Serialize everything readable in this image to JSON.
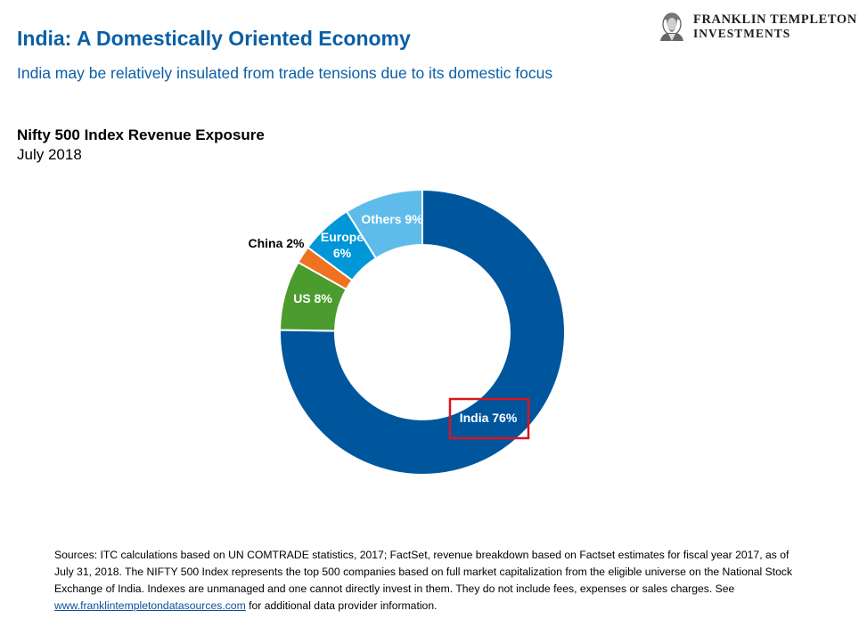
{
  "header": {
    "title": "India: A Domestically Oriented Economy",
    "subtitle": "India may be relatively insulated from trade tensions due to its domestic focus"
  },
  "logo": {
    "line1": "FRANKLIN TEMPLETON",
    "line2": "INVESTMENTS"
  },
  "chart_data": {
    "type": "pie",
    "title": "Nifty 500 Index Revenue Exposure",
    "subtitle": "July 2018",
    "donut": true,
    "slices": [
      {
        "name": "India",
        "value": 76,
        "label": "India 76%",
        "color": "#00569d",
        "highlighted": true
      },
      {
        "name": "US",
        "value": 8,
        "label": "US 8%",
        "color": "#4c9b2e"
      },
      {
        "name": "China",
        "value": 2,
        "label": "China 2%",
        "color": "#ee7220"
      },
      {
        "name": "Europe",
        "value": 6,
        "label_lines": [
          "Europe",
          "6%"
        ],
        "color": "#0097d9"
      },
      {
        "name": "Others",
        "value": 9,
        "label": "Others 9%",
        "color": "#5fbcea"
      }
    ],
    "highlight_color": "#d9141e"
  },
  "footnote": {
    "text_before_link": "Sources: ITC calculations based on UN COMTRADE statistics, 2017; FactSet, revenue breakdown based on Factset estimates for fiscal year 2017, as of July 31, 2018. The NIFTY 500 Index represents the top 500 companies based on full market capitalization from the eligible universe on the National Stock Exchange of India. Indexes are unmanaged and one cannot directly invest in them. They do not include fees, expenses or sales charges. See",
    "link_text": "www.franklintempletondatasources.com",
    "text_after_link": "for additional data provider information."
  }
}
